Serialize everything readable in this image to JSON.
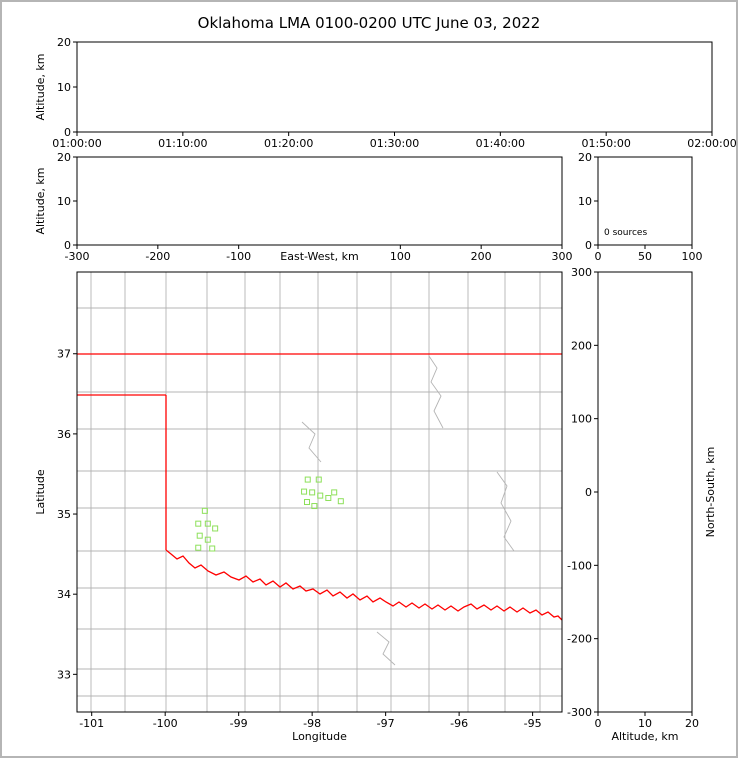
{
  "title": "Oklahoma LMA 0100-0200 UTC June 03, 2022",
  "colors": {
    "state_border": "#ff0000",
    "county_border": "#b4b4b4",
    "source_marker": "#8de05a",
    "axis": "#000000",
    "background": "#ffffff",
    "frame": "#b5b5b5"
  },
  "chart_data": [
    {
      "id": "time_altitude",
      "type": "scatter",
      "title": "Oklahoma LMA 0100-0200 UTC June 03, 2022",
      "xlabel": "",
      "ylabel": "Altitude, km",
      "xlim": [
        "01:00:00",
        "02:00:00"
      ],
      "xticks": [
        "01:00:00",
        "01:10:00",
        "01:20:00",
        "01:30:00",
        "01:40:00",
        "01:50:00",
        "02:00:00"
      ],
      "ylim": [
        0,
        20
      ],
      "yticks": [
        0,
        10,
        20
      ],
      "grid": false,
      "points": []
    },
    {
      "id": "eastwest_altitude",
      "type": "scatter",
      "xlabel": "East-West, km",
      "ylabel": "Altitude, km",
      "xlim": [
        -300,
        300
      ],
      "xticks": [
        -300,
        -200,
        -100,
        100,
        200,
        300
      ],
      "ylim": [
        0,
        20
      ],
      "yticks": [
        0,
        10,
        20
      ],
      "grid": false,
      "points": []
    },
    {
      "id": "altitude_histogram",
      "type": "histogram",
      "annotation": "0 sources",
      "xlim": [
        0,
        100
      ],
      "xticks": [
        0,
        50,
        100
      ],
      "ylim": [
        0,
        20
      ],
      "yticks": [
        0,
        10,
        20
      ],
      "grid": false,
      "values": []
    },
    {
      "id": "map",
      "type": "scatter",
      "xlabel": "Longitude",
      "ylabel": "Latitude",
      "xlim": [
        -101.2,
        -94.6
      ],
      "xticks": [
        -101,
        -100,
        -99,
        -98,
        -97,
        -96,
        -95
      ],
      "ylim": [
        32.53,
        38.02
      ],
      "yticks": [
        33,
        34,
        35,
        36,
        37
      ],
      "grid": false,
      "series_name": "LMA sources",
      "points": [
        [
          -98.06,
          35.43
        ],
        [
          -97.91,
          35.43
        ],
        [
          -98.11,
          35.28
        ],
        [
          -98.0,
          35.27
        ],
        [
          -97.89,
          35.23
        ],
        [
          -98.07,
          35.15
        ],
        [
          -97.97,
          35.1
        ],
        [
          -97.78,
          35.2
        ],
        [
          -97.61,
          35.16
        ],
        [
          -97.7,
          35.27
        ],
        [
          -99.46,
          35.04
        ],
        [
          -99.55,
          34.88
        ],
        [
          -99.42,
          34.88
        ],
        [
          -99.32,
          34.82
        ],
        [
          -99.53,
          34.73
        ],
        [
          -99.42,
          34.68
        ],
        [
          -99.55,
          34.58
        ],
        [
          -99.36,
          34.57
        ]
      ]
    },
    {
      "id": "northsouth_altitude",
      "type": "scatter",
      "xlabel": "Altitude, km",
      "ylabel": "North-South, km",
      "xlim": [
        0,
        20
      ],
      "xticks": [
        0,
        10,
        20
      ],
      "ylim": [
        -300,
        300
      ],
      "yticks": [
        300,
        200,
        100,
        0,
        -100,
        -200,
        -300
      ],
      "grid": false,
      "points": []
    }
  ]
}
